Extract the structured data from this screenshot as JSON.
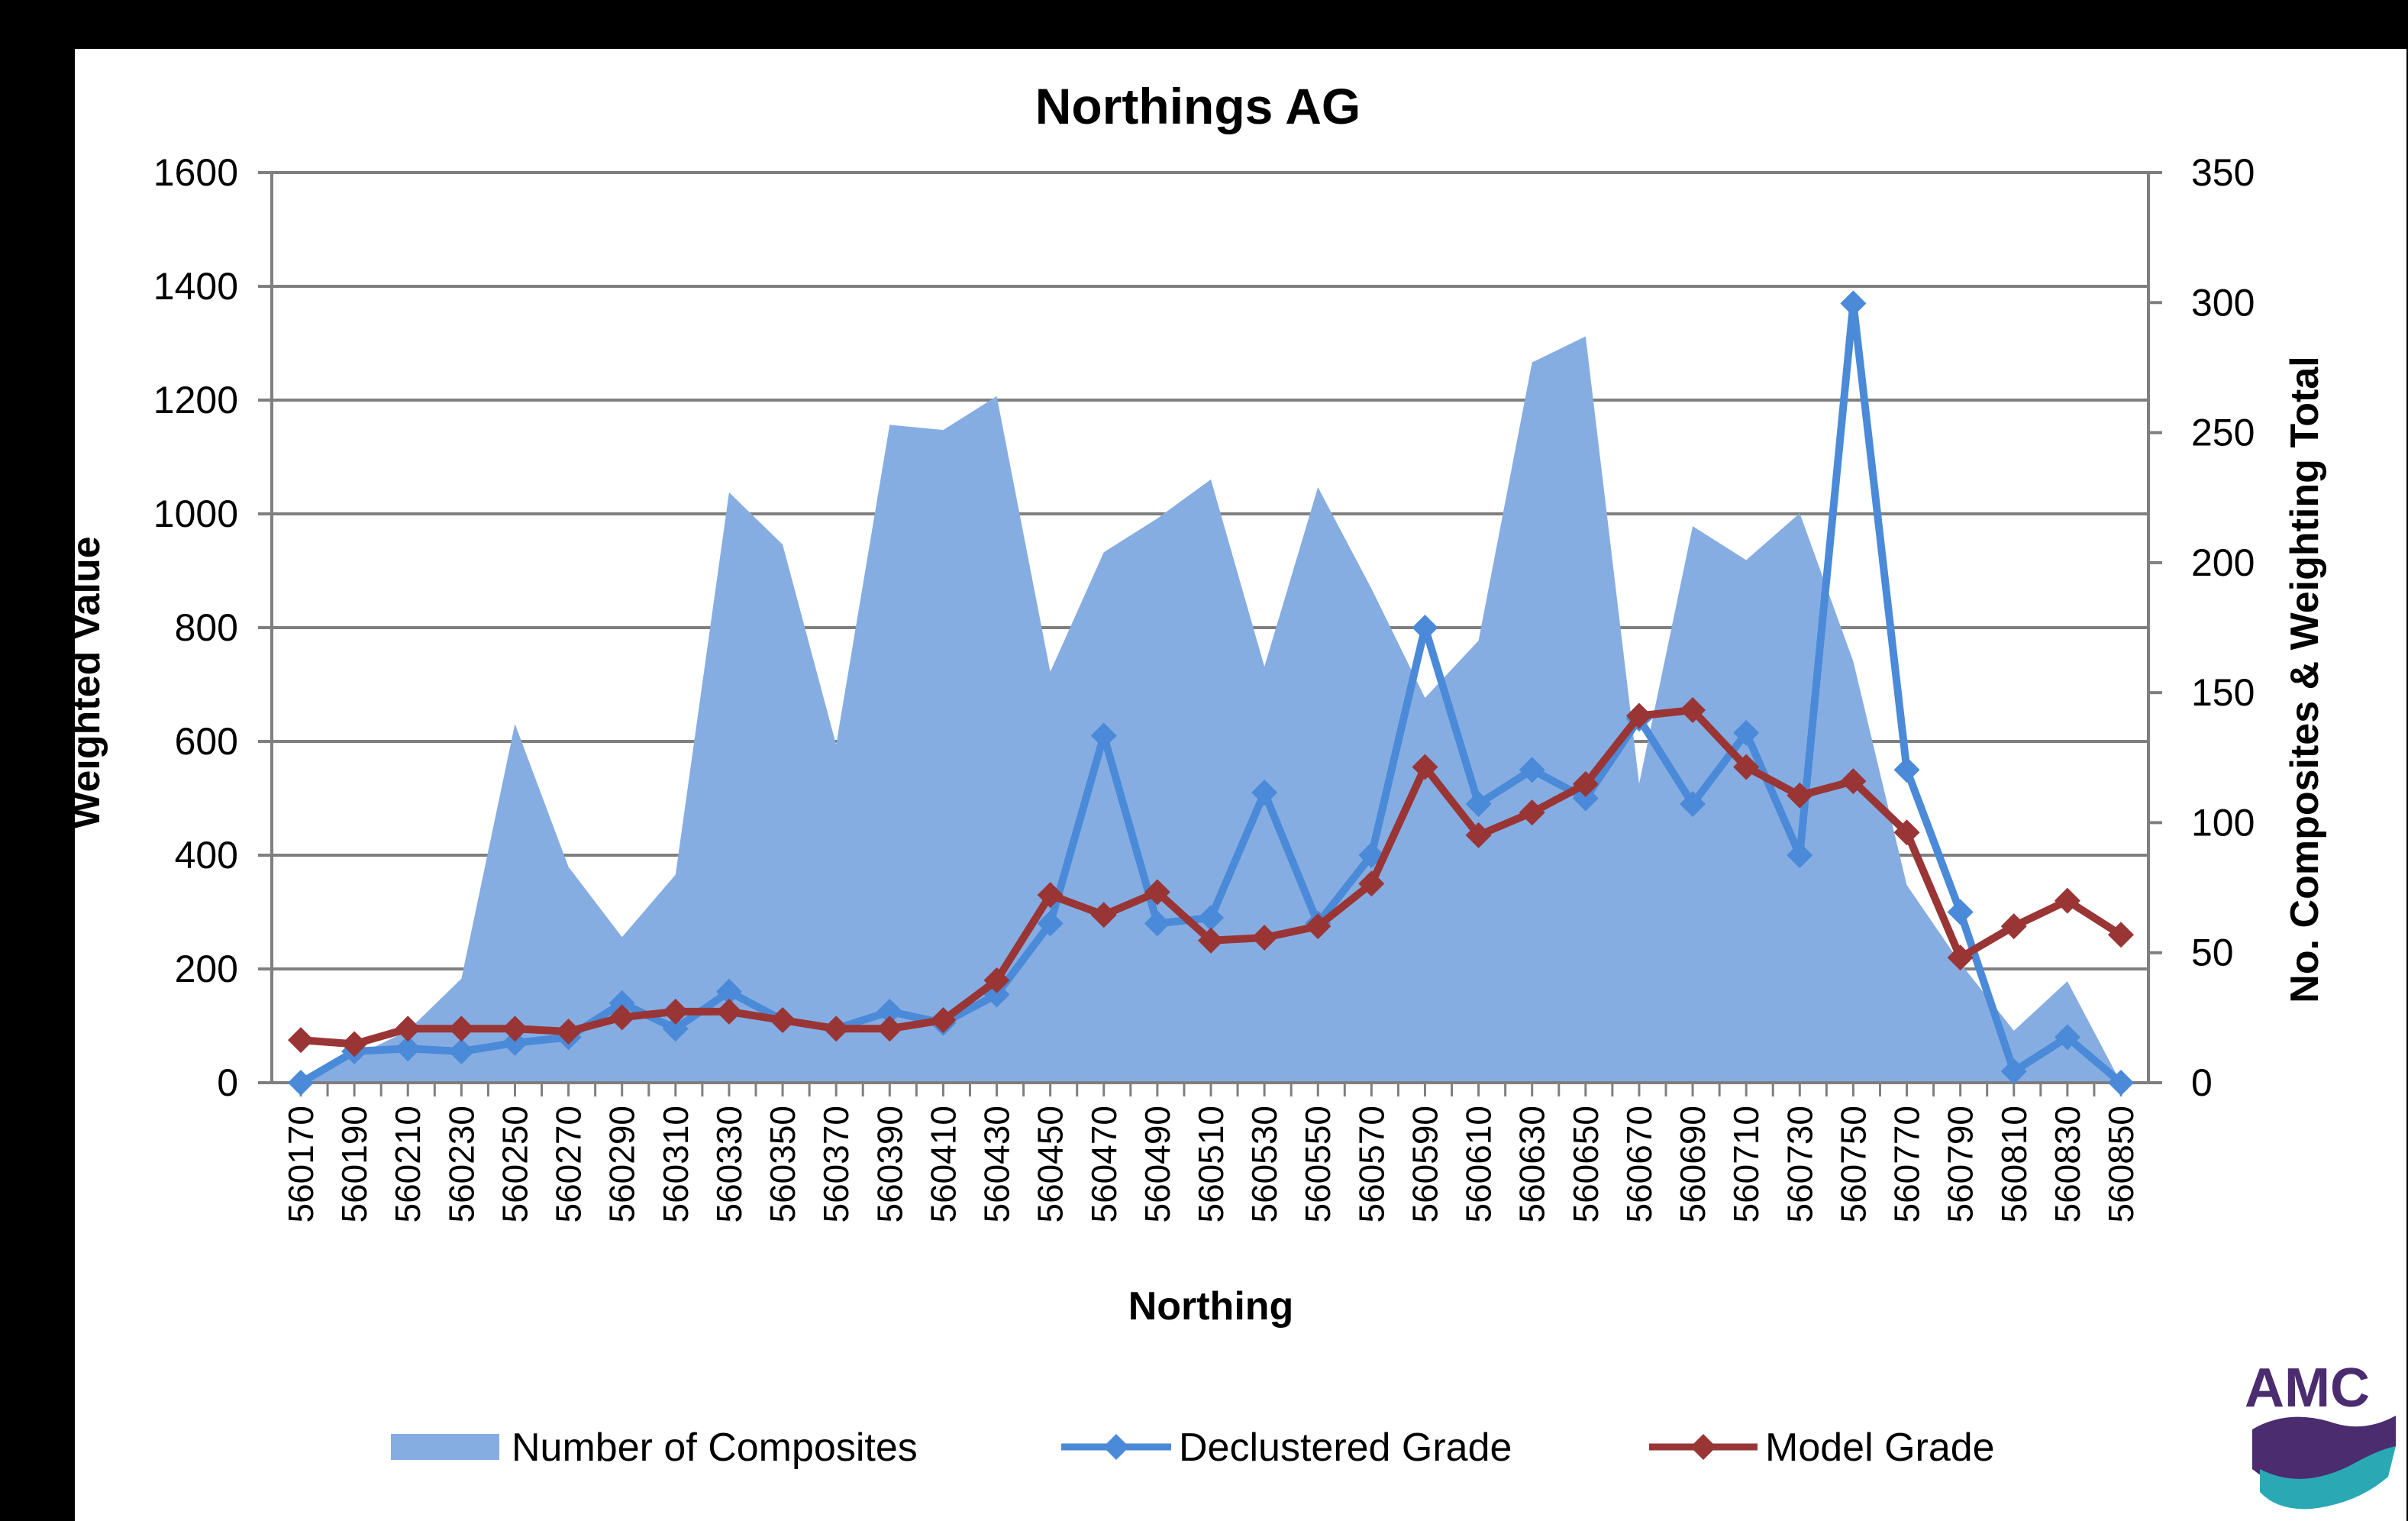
{
  "colors": {
    "area": "#86ade2",
    "declustered": "#4a8ad8",
    "model": "#9a3535",
    "grid": "#7f7f7f",
    "logo_purple": "#4a2c6f",
    "logo_teal": "#2aa9b5"
  },
  "logo": {
    "text": "AMC"
  },
  "chart_data": {
    "type": "line",
    "title": "Northings AG",
    "xlabel": "Northing",
    "ylabel": "Weighted Value",
    "y2label": "No. Composites & Weighting Total",
    "ylim": [
      0,
      1600
    ],
    "y2lim": [
      0,
      350
    ],
    "yticks": [
      "0",
      "200",
      "400",
      "600",
      "800",
      "1000",
      "1200",
      "1400",
      "1600"
    ],
    "y2ticks": [
      "0",
      "50",
      "100",
      "150",
      "200",
      "250",
      "300",
      "350"
    ],
    "grid": true,
    "legend_position": "bottom",
    "x": [
      560170,
      560180,
      560190,
      560200,
      560210,
      560220,
      560230,
      560240,
      560250,
      560260,
      560270,
      560280,
      560290,
      560300,
      560310,
      560320,
      560330,
      560340,
      560350,
      560360,
      560370,
      560380,
      560390,
      560400,
      560410,
      560420,
      560430,
      560440,
      560450,
      560460,
      560470,
      560480,
      560490,
      560500,
      560510,
      560520,
      560530,
      560540,
      560550,
      560560,
      560570,
      560580,
      560590,
      560600,
      560610,
      560620,
      560630,
      560640,
      560650,
      560660,
      560670,
      560680,
      560690,
      560700,
      560710,
      560720,
      560730,
      560740,
      560750,
      560760,
      560770,
      560780,
      560790,
      560800,
      560810,
      560820,
      560830,
      560840,
      560850
    ],
    "xtick_labels": [
      "560170",
      "560190",
      "560210",
      "560230",
      "560250",
      "560270",
      "560290",
      "560310",
      "560330",
      "560350",
      "560370",
      "560390",
      "560410",
      "560430",
      "560450",
      "560470",
      "560490",
      "560510",
      "560530",
      "560550",
      "560570",
      "560590",
      "560610",
      "560630",
      "560650",
      "560670",
      "560690",
      "560710",
      "560730",
      "560750",
      "560770",
      "560790",
      "560810",
      "560830",
      "560850"
    ],
    "series": [
      {
        "name": "Number of Composites",
        "type": "area",
        "axis": "y2",
        "x": [
          560170,
          560190,
          560210,
          560230,
          560250,
          560270,
          560290,
          560310,
          560330,
          560350,
          560370,
          560390,
          560410,
          560430,
          560450,
          560470,
          560490,
          560510,
          560530,
          560550,
          560570,
          560590,
          560610,
          560630,
          560650,
          560670,
          560690,
          560710,
          560730,
          560750,
          560770,
          560790,
          560810,
          560830,
          560850
        ],
        "values": [
          2,
          10,
          20,
          40,
          138,
          83,
          56,
          80,
          227,
          207,
          130,
          253,
          251,
          264,
          158,
          204,
          217,
          232,
          160,
          229,
          190,
          148,
          170,
          277,
          287,
          115,
          214,
          201,
          219,
          162,
          76,
          46,
          20,
          39,
          0
        ]
      },
      {
        "name": "Declustered Grade",
        "type": "line",
        "axis": "y",
        "x": [
          560170,
          560190,
          560210,
          560230,
          560250,
          560270,
          560290,
          560310,
          560330,
          560350,
          560370,
          560390,
          560410,
          560430,
          560450,
          560470,
          560490,
          560510,
          560530,
          560550,
          560570,
          560590,
          560610,
          560630,
          560650,
          560670,
          560690,
          560710,
          560730,
          560750,
          560770,
          560790,
          560810,
          560830,
          560850
        ],
        "values": [
          0,
          55,
          60,
          55,
          70,
          80,
          140,
          95,
          160,
          110,
          95,
          125,
          105,
          155,
          280,
          610,
          280,
          290,
          510,
          280,
          400,
          800,
          490,
          550,
          500,
          640,
          490,
          615,
          400,
          1370,
          550,
          300,
          20,
          80,
          0
        ]
      },
      {
        "name": "Model Grade",
        "type": "line",
        "axis": "y",
        "x": [
          560170,
          560190,
          560210,
          560230,
          560250,
          560270,
          560290,
          560310,
          560330,
          560350,
          560370,
          560390,
          560410,
          560430,
          560450,
          560470,
          560490,
          560510,
          560530,
          560550,
          560570,
          560590,
          560610,
          560630,
          560650,
          560670,
          560690,
          560710,
          560730,
          560750,
          560770,
          560790,
          560810,
          560830,
          560850
        ],
        "values": [
          75,
          68,
          95,
          95,
          95,
          90,
          115,
          125,
          125,
          110,
          95,
          95,
          110,
          180,
          330,
          295,
          335,
          250,
          255,
          275,
          350,
          555,
          435,
          475,
          525,
          645,
          655,
          555,
          505,
          530,
          440,
          220,
          275,
          320,
          260
        ]
      }
    ]
  }
}
